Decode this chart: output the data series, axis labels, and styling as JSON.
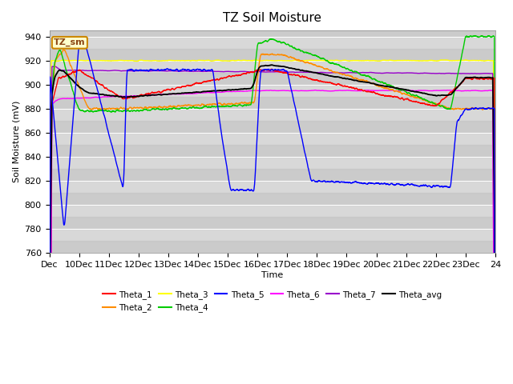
{
  "title": "TZ Soil Moisture",
  "xlabel": "Time",
  "ylabel": "Soil Moisture (mV)",
  "ylim": [
    760,
    945
  ],
  "yticks": [
    760,
    780,
    800,
    820,
    840,
    860,
    880,
    900,
    920,
    940
  ],
  "xlim": [
    0,
    15
  ],
  "xtick_positions": [
    0,
    1,
    2,
    3,
    4,
    5,
    6,
    7,
    8,
    9,
    10,
    11,
    12,
    13,
    14,
    15
  ],
  "xtick_labels": [
    "Dec",
    "10Dec",
    "11Dec",
    "12Dec",
    "13Dec",
    "14Dec",
    "15Dec",
    "16Dec",
    "17Dec",
    "18Dec",
    "19Dec",
    "20Dec",
    "21Dec",
    "22Dec",
    "23Dec",
    "24"
  ],
  "legend_entries": [
    "Theta_1",
    "Theta_2",
    "Theta_3",
    "Theta_4",
    "Theta_5",
    "Theta_6",
    "Theta_7",
    "Theta_avg"
  ],
  "colors": {
    "Theta_1": "#ff0000",
    "Theta_2": "#ff8c00",
    "Theta_3": "#ffff00",
    "Theta_4": "#00cc00",
    "Theta_5": "#0000ff",
    "Theta_6": "#ff00ff",
    "Theta_7": "#9900cc",
    "Theta_avg": "#000000"
  },
  "label_box": "TZ_sm",
  "plot_bg": "#d8d8d8"
}
